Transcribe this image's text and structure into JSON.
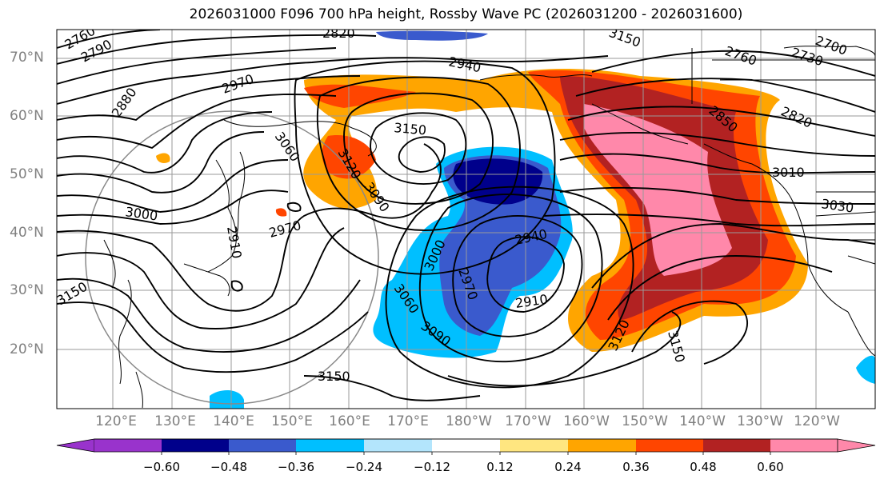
{
  "title": "2026031000 F096 700 hPa height, Rossby Wave PC (2026031200 - 2026031600)",
  "latitude_labels": [
    "70°N",
    "60°N",
    "50°N",
    "40°N",
    "30°N",
    "20°N"
  ],
  "longitude_labels": [
    "120°E",
    "130°E",
    "140°E",
    "150°E",
    "160°E",
    "170°E",
    "180°W",
    "170°W",
    "160°W",
    "150°W",
    "140°W",
    "130°W",
    "120°W"
  ],
  "colorbar": {
    "tick_labels": [
      "−0.60",
      "−0.48",
      "−0.36",
      "−0.24",
      "−0.12",
      "0.12",
      "0.24",
      "0.36",
      "0.48",
      "0.60"
    ],
    "colors": [
      "#9933cc",
      "#00008b",
      "#3a5acd",
      "#00bfff",
      "#b3e5fc",
      "#ffffff",
      "#ffe680",
      "#ffa500",
      "#ff4500",
      "#b22222",
      "#ff88aa"
    ]
  },
  "contour_labels": [
    "2760",
    "2790",
    "2820",
    "2880",
    "2970",
    "2940",
    "3150",
    "3060",
    "3120",
    "3090",
    "3000",
    "2970",
    "2910",
    "3150",
    "3060",
    "3090",
    "3000",
    "2970",
    "2940",
    "2910",
    "3120",
    "3150",
    "2760",
    "2730",
    "2700",
    "2820",
    "2850",
    "3010",
    "3030",
    "3150",
    "3150"
  ]
}
